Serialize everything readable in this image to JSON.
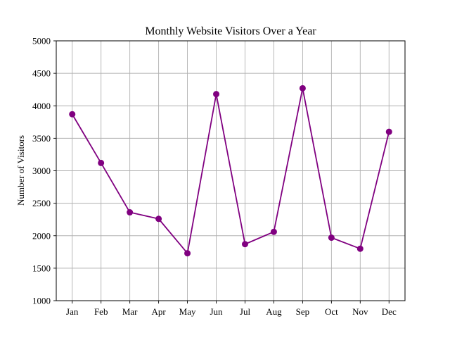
{
  "chart_data": {
    "type": "line",
    "title": "Monthly Website Visitors Over a Year",
    "xlabel": "",
    "ylabel": "Number of Visitors",
    "categories": [
      "Jan",
      "Feb",
      "Mar",
      "Apr",
      "May",
      "Jun",
      "Jul",
      "Aug",
      "Sep",
      "Oct",
      "Nov",
      "Dec"
    ],
    "series": [
      {
        "values": [
          3870,
          3120,
          2360,
          2260,
          1730,
          4180,
          1870,
          2060,
          4270,
          1970,
          1800,
          3600
        ],
        "color": "#800080",
        "marker": "circle"
      }
    ],
    "ylim": [
      1000,
      5000
    ],
    "yticks": [
      1000,
      1500,
      2000,
      2500,
      3000,
      3500,
      4000,
      4500,
      5000
    ],
    "grid": true,
    "legend": "none"
  }
}
